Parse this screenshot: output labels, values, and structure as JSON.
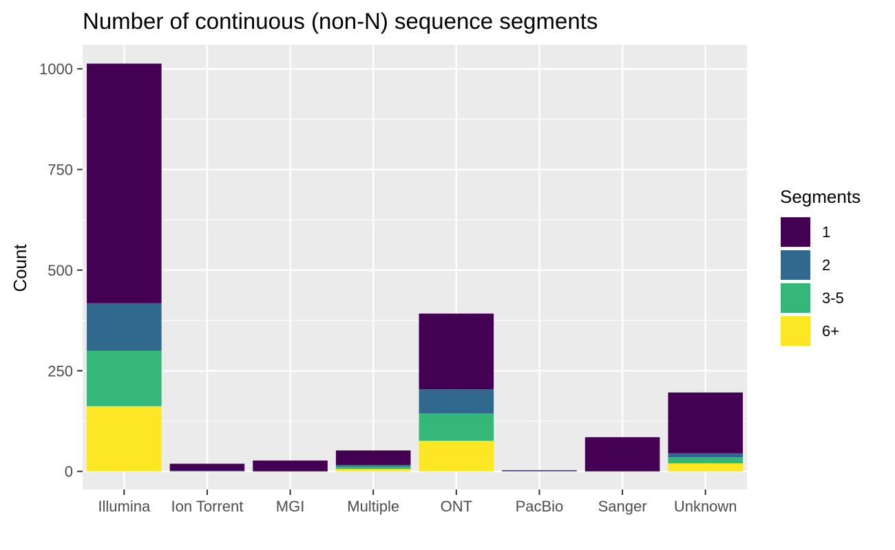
{
  "chart_data": {
    "type": "bar",
    "stacked": true,
    "title": "Number of continuous (non-N) sequence segments",
    "xlabel": "",
    "ylabel": "Count",
    "ylim": [
      -45,
      1060
    ],
    "yticks": [
      0,
      250,
      500,
      750,
      1000
    ],
    "grid": true,
    "legend": {
      "title": "Segments",
      "position": "right"
    },
    "categories": [
      "Illumina",
      "Ion Torrent",
      "MGI",
      "Multiple",
      "ONT",
      "PacBio",
      "Sanger",
      "Unknown"
    ],
    "series": [
      {
        "name": "6+",
        "color": "#fde725",
        "values": [
          162,
          0,
          0,
          6,
          76,
          0,
          0,
          20
        ]
      },
      {
        "name": "3-5",
        "color": "#35b779",
        "values": [
          138,
          0,
          0,
          6,
          68,
          0,
          0,
          15
        ]
      },
      {
        "name": "2",
        "color": "#31688e",
        "values": [
          118,
          2,
          0,
          4,
          60,
          2,
          0,
          10
        ]
      },
      {
        "name": "1",
        "color": "#440154",
        "values": [
          595,
          17,
          27,
          36,
          188,
          1,
          85,
          151
        ]
      }
    ]
  }
}
